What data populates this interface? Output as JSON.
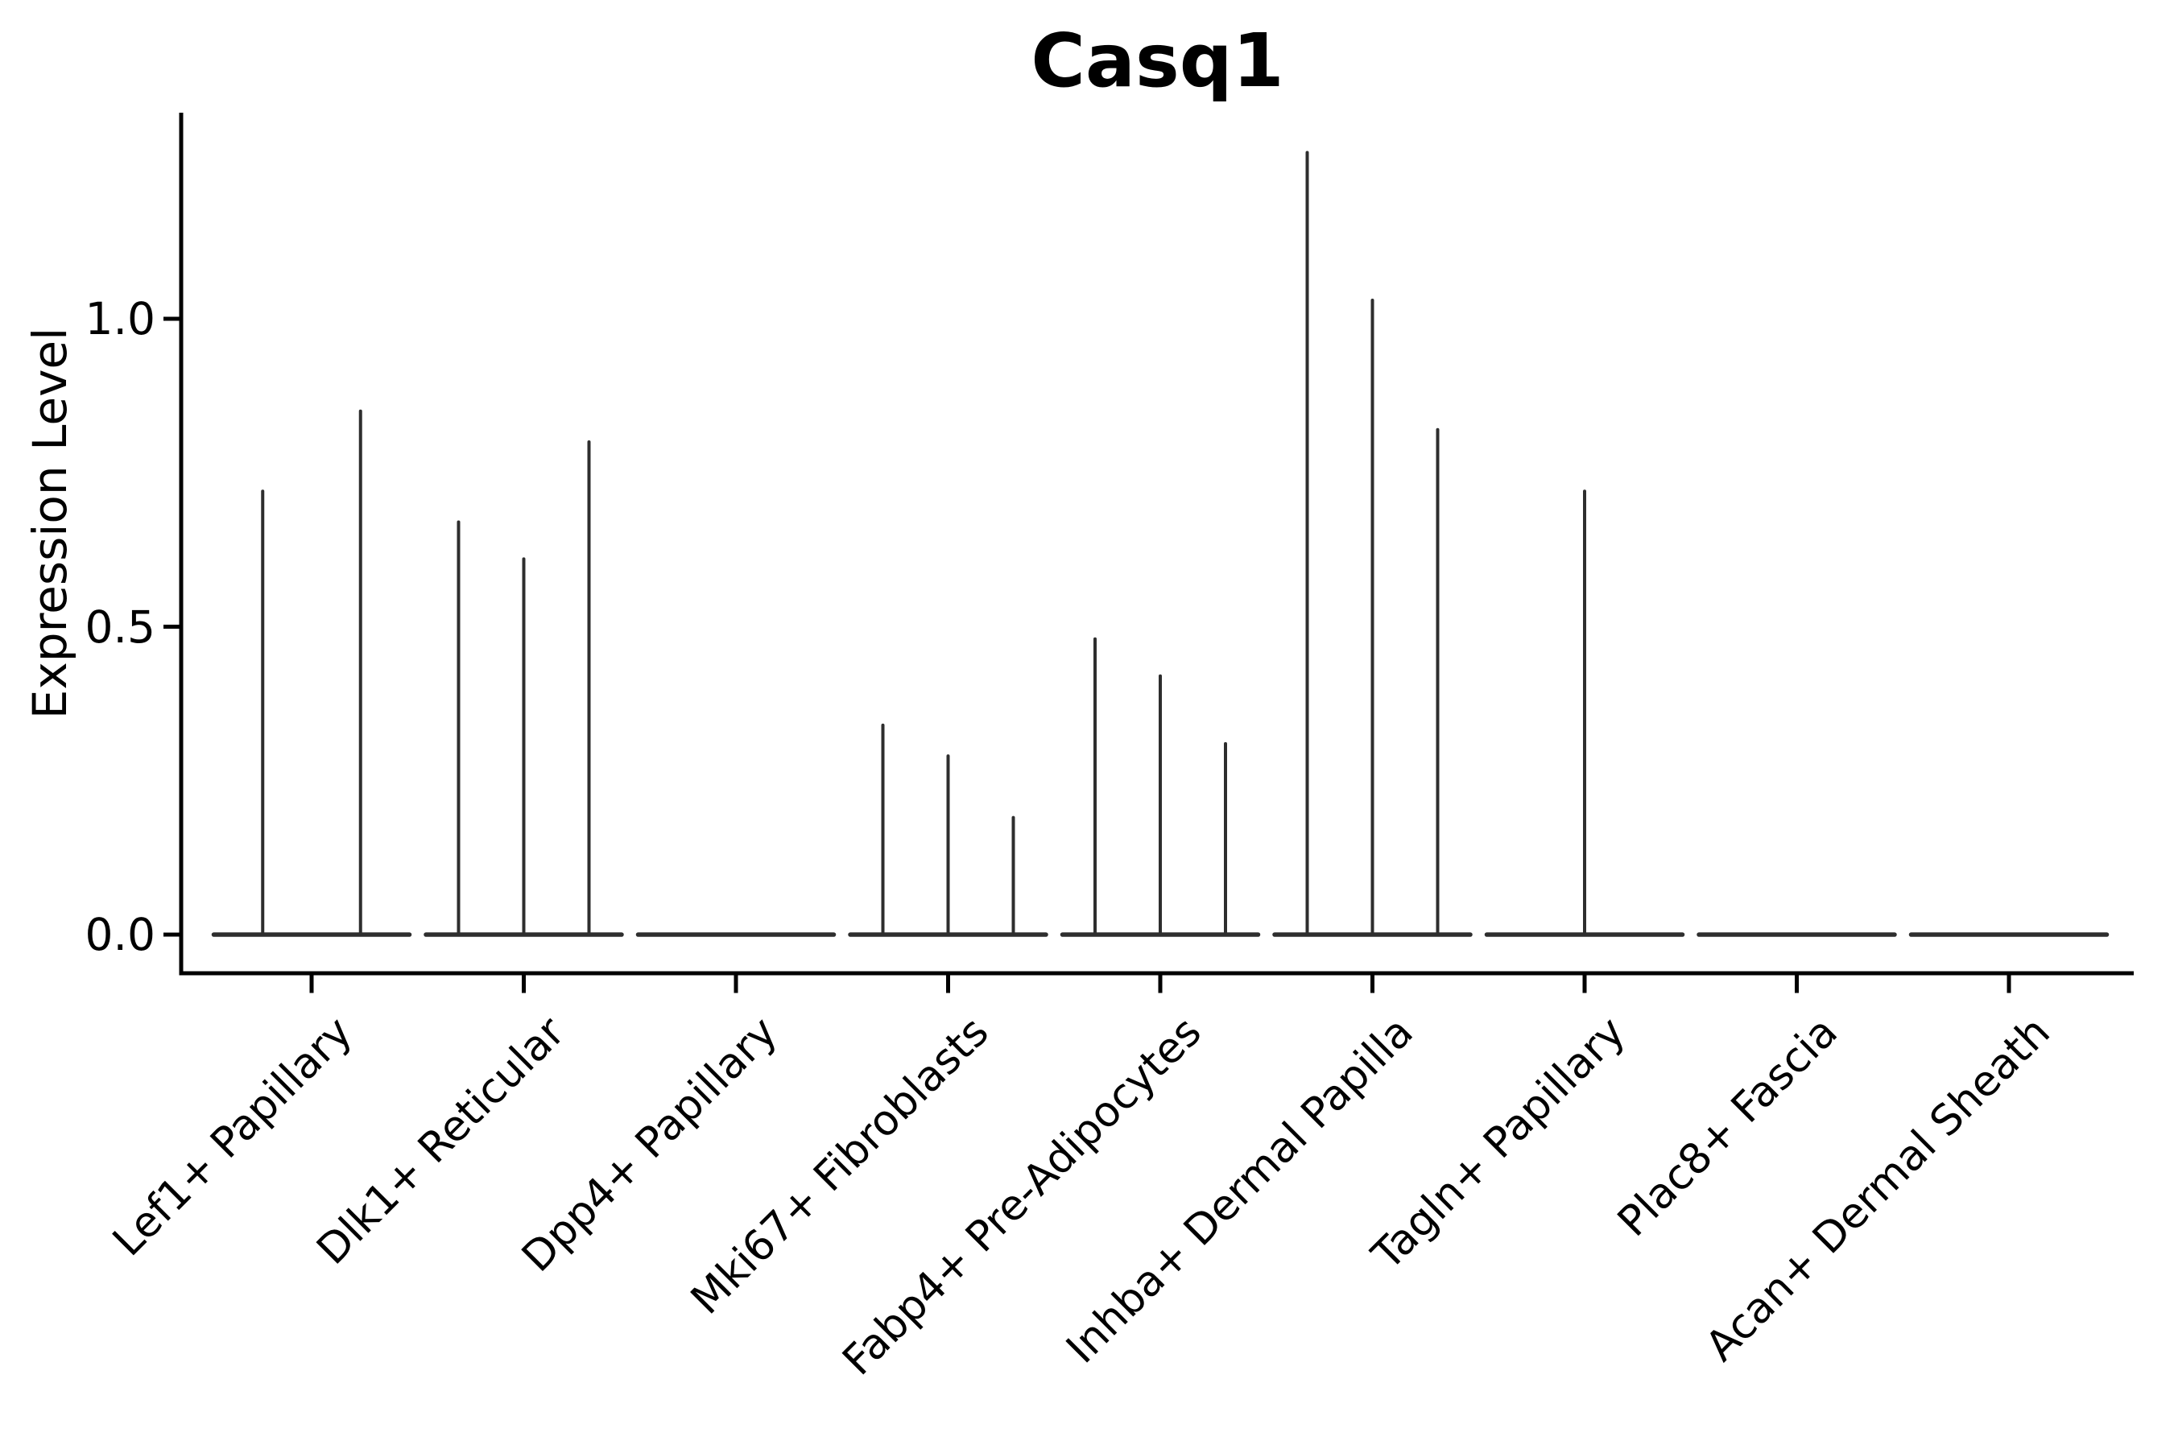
{
  "chart_data": {
    "type": "violin",
    "title": "Casq1",
    "ylabel": "Expression Level",
    "xlabel": "",
    "yticks": [
      "0.0",
      "0.5",
      "1.0"
    ],
    "ytick_values": [
      0.0,
      0.5,
      1.0
    ],
    "ylim": [
      -0.06,
      1.34
    ],
    "grid": false,
    "legend": "none",
    "categories": [
      "Lef1+ Papillary",
      "Dlk1+ Reticular",
      "Dpp4+ Papillary",
      "Mki67+ Fibroblasts",
      "Fabp4+ Pre-Adipocytes",
      "Inhba+ Dermal Papilla",
      "Tagln+ Papillary",
      "Plac8+ Fascia",
      "Acan+ Dermal Sheath"
    ],
    "series_note": "Sparse-expression violins: each category shows a flat base at 0; needle spikes mark sub-violins containing expressing cells (value = spike max expression).",
    "spike_values": [
      [
        0.72,
        0.85
      ],
      [
        0.67,
        0.61,
        0.8
      ],
      [],
      [
        0.34,
        0.29,
        0.19
      ],
      [
        0.48,
        0.42,
        0.31
      ],
      [
        1.27,
        1.03,
        0.82
      ],
      [
        0.72
      ],
      [],
      []
    ],
    "baseline_value": 0.0
  },
  "style": {
    "violin_line_color": "#2e2e2e",
    "axis_color": "#000000",
    "background": "#ffffff"
  }
}
